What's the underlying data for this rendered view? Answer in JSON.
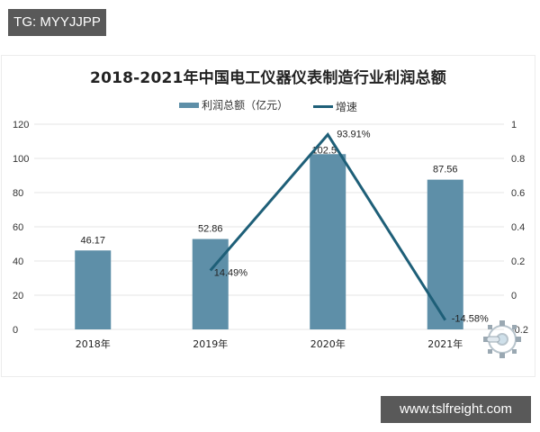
{
  "overlay": {
    "top_tag": "TG: MYYJJPP",
    "bottom_tag": "www.tslfreight.com"
  },
  "chart": {
    "title": "2018-2021年中国电工仪器仪表制造行业利润总额",
    "legend": {
      "bar_label": "利润总额（亿元）",
      "line_label": "增速"
    }
  },
  "colors": {
    "bar": "#5e8fa8",
    "line": "#1e5f78",
    "grid": "#e6e6e6",
    "tag_bg": "#595959"
  },
  "chart_data": {
    "type": "bar",
    "title": "2018-2021年中国电工仪器仪表制造行业利润总额",
    "categories": [
      "2018年",
      "2019年",
      "2020年",
      "2021年"
    ],
    "series": [
      {
        "name": "利润总额（亿元）",
        "type": "bar",
        "axis": "left",
        "values": [
          46.17,
          52.86,
          102.5,
          87.56
        ],
        "labels": [
          "46.17",
          "52.86",
          "102.5",
          "87.56"
        ]
      },
      {
        "name": "增速",
        "type": "line",
        "axis": "right",
        "values": [
          null,
          0.1449,
          0.9391,
          -0.1458
        ],
        "labels": [
          "",
          "14.49%",
          "93.91%",
          "-14.58%"
        ]
      }
    ],
    "left_axis": {
      "ticks": [
        "0",
        "20",
        "40",
        "60",
        "80",
        "100",
        "120"
      ],
      "ylim": [
        0,
        120
      ]
    },
    "right_axis": {
      "ticks": [
        "-0.2",
        "0",
        "0.2",
        "0.4",
        "0.6",
        "0.8",
        "1"
      ],
      "ylim": [
        -0.2,
        1
      ]
    },
    "xlabel": "",
    "ylabel": "",
    "grid": true,
    "legend_position": "top"
  }
}
